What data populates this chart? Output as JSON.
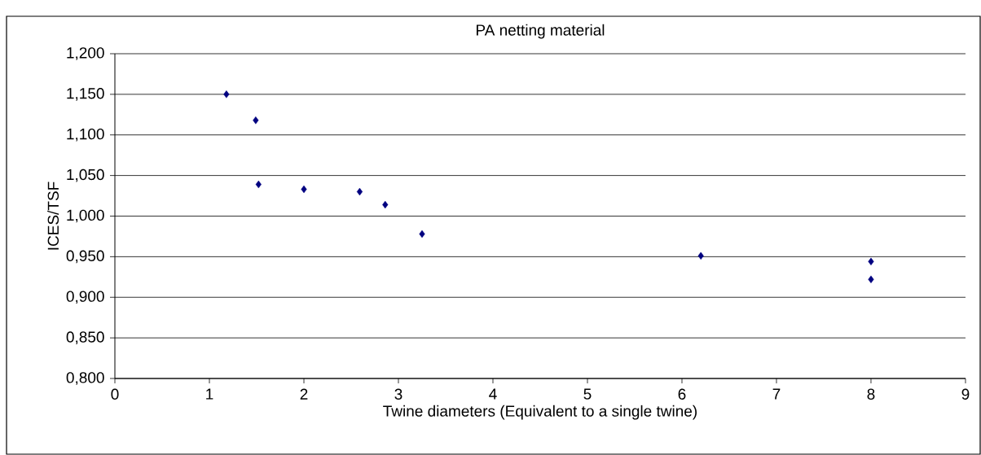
{
  "chart_data": {
    "type": "scatter",
    "title": "PA netting material",
    "xlabel": "Twine diameters (Equivalent to a single twine)",
    "ylabel": "ICES/TSF",
    "series": [
      {
        "color": "#000080",
        "x": [
          1.18,
          1.49,
          1.52,
          2.0,
          2.59,
          2.86,
          3.25,
          6.2,
          8.0,
          8.0
        ],
        "values": [
          1.15,
          1.118,
          1.039,
          1.033,
          1.03,
          1.014,
          0.978,
          0.951,
          0.944,
          0.922
        ]
      }
    ],
    "xlim": [
      0,
      9
    ],
    "xticks": [
      0,
      1,
      2,
      3,
      4,
      5,
      6,
      7,
      8,
      9
    ],
    "ylim": [
      0.8,
      1.2
    ],
    "yticks": [
      {
        "value": 0.8,
        "label": "0,800"
      },
      {
        "value": 0.85,
        "label": "0,850"
      },
      {
        "value": 0.9,
        "label": "0,900"
      },
      {
        "value": 0.95,
        "label": "0,950"
      },
      {
        "value": 1.0,
        "label": "1,000"
      },
      {
        "value": 1.05,
        "label": "1,050"
      },
      {
        "value": 1.1,
        "label": "1,100"
      },
      {
        "value": 1.15,
        "label": "1,150"
      },
      {
        "value": 1.2,
        "label": "1,200"
      }
    ],
    "grid": "y",
    "marker": "diamond"
  }
}
